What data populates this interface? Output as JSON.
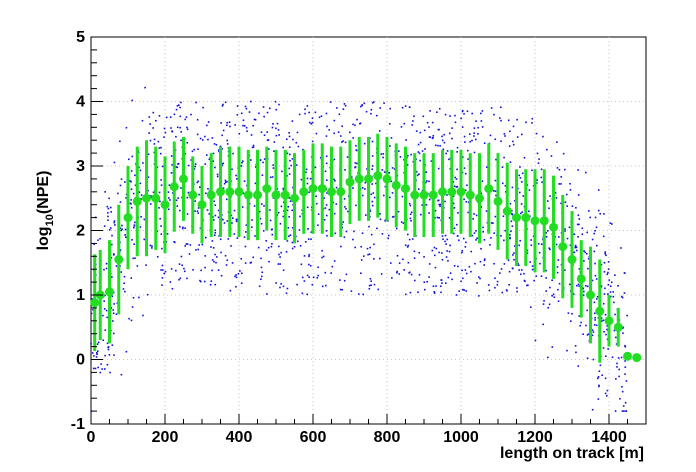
{
  "chart_data": {
    "type": "scatter",
    "title": "",
    "xlabel": "length on track [m]",
    "ylabel_main": "log",
    "ylabel_sub": "10",
    "ylabel_tail": "(NPE)",
    "xlim": [
      0,
      1500
    ],
    "ylim": [
      -1,
      5
    ],
    "x_ticks": [
      0,
      200,
      400,
      600,
      800,
      1000,
      1200,
      1400
    ],
    "y_ticks": [
      -1,
      0,
      1,
      2,
      3,
      4,
      5
    ],
    "grid": true,
    "colors": {
      "scatter": "#1010dd",
      "profile": "#22dd22",
      "axis": "#000000",
      "grid": "#c8c8c8"
    },
    "series": [
      {
        "kind": "profile",
        "x": [
          10,
          25,
          50,
          75,
          100,
          125,
          150,
          175,
          200,
          225,
          250,
          275,
          300,
          325,
          350,
          375,
          400,
          425,
          450,
          475,
          500,
          525,
          550,
          575,
          600,
          625,
          650,
          675,
          700,
          725,
          750,
          775,
          800,
          825,
          850,
          875,
          900,
          925,
          950,
          975,
          1000,
          1025,
          1050,
          1075,
          1100,
          1125,
          1150,
          1175,
          1200,
          1225,
          1250,
          1275,
          1300,
          1325,
          1350,
          1375,
          1400,
          1425,
          1450,
          1475
        ],
        "y": [
          0.88,
          1.0,
          1.05,
          1.55,
          2.2,
          2.45,
          2.5,
          2.5,
          2.4,
          2.68,
          2.8,
          2.55,
          2.4,
          2.55,
          2.6,
          2.6,
          2.6,
          2.55,
          2.55,
          2.65,
          2.55,
          2.55,
          2.5,
          2.6,
          2.65,
          2.65,
          2.6,
          2.6,
          2.75,
          2.8,
          2.8,
          2.85,
          2.8,
          2.7,
          2.65,
          2.55,
          2.55,
          2.55,
          2.6,
          2.6,
          2.6,
          2.55,
          2.5,
          2.65,
          2.45,
          2.3,
          2.2,
          2.2,
          2.15,
          2.15,
          2.05,
          1.75,
          1.55,
          1.25,
          1.0,
          0.75,
          0.6,
          0.5,
          0.05,
          0.03
        ],
        "err": [
          0.75,
          0.7,
          0.8,
          0.85,
          0.8,
          0.85,
          0.9,
          0.8,
          0.75,
          0.7,
          0.65,
          0.6,
          0.6,
          0.65,
          0.7,
          0.7,
          0.7,
          0.7,
          0.7,
          0.65,
          0.7,
          0.7,
          0.7,
          0.65,
          0.7,
          0.7,
          0.7,
          0.7,
          0.65,
          0.65,
          0.65,
          0.65,
          0.65,
          0.65,
          0.65,
          0.65,
          0.65,
          0.65,
          0.65,
          0.65,
          0.65,
          0.65,
          0.7,
          0.7,
          0.75,
          0.75,
          0.75,
          0.75,
          0.8,
          0.8,
          0.8,
          0.8,
          0.75,
          0.6,
          0.75,
          0.8,
          0.4,
          0.3,
          0.0,
          0.0
        ]
      }
    ],
    "scatter_points": {
      "count": 1800,
      "x_range": [
        0,
        1450
      ],
      "y_range": [
        -0.8,
        4.25
      ],
      "core_band": [
        1.0,
        4.0
      ],
      "description_values": "dense cloud concentrated between log10(NPE) 1.5 and 4 from x=150 to x=1100, tapering to ~0 at both ends"
    }
  }
}
